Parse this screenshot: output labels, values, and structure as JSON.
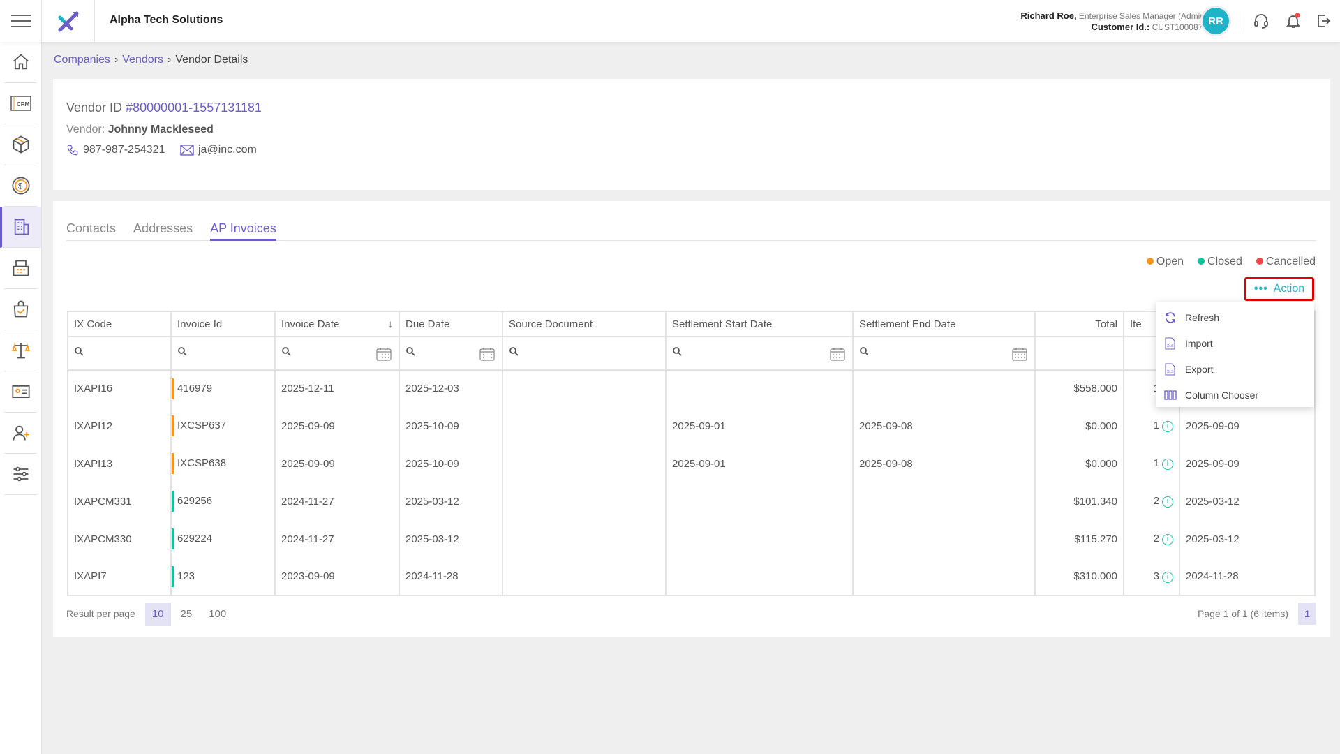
{
  "app": {
    "company": "Alpha Tech Solutions"
  },
  "user": {
    "name": "Richard Roe,",
    "role": "Enterprise Sales Manager (Admin)",
    "customer_label": "Customer Id.:",
    "customer_id": "CUST1000875",
    "initials": "RR"
  },
  "sidebar": {
    "items": [
      {
        "icon": "home-icon"
      },
      {
        "icon": "crm-icon",
        "label": "CRM"
      },
      {
        "icon": "box-icon"
      },
      {
        "icon": "dollar-icon"
      },
      {
        "icon": "building-icon",
        "active": true
      },
      {
        "icon": "register-icon"
      },
      {
        "icon": "shopping-bag-icon"
      },
      {
        "icon": "scales-icon"
      },
      {
        "icon": "id-card-icon"
      },
      {
        "icon": "add-user-icon"
      },
      {
        "icon": "sliders-icon"
      }
    ]
  },
  "breadcrumb": {
    "items": [
      "Companies",
      "Vendors"
    ],
    "current": "Vendor Details"
  },
  "vendor": {
    "id_label": "Vendor ID",
    "id": "#80000001-1557131181",
    "name_label": "Vendor:",
    "name": "Johnny Mackleseed",
    "phone": "987-987-254321",
    "email": "ja@inc.com"
  },
  "tabs": [
    "Contacts",
    "Addresses",
    "AP Invoices"
  ],
  "active_tab": "AP Invoices",
  "legend": [
    {
      "label": "Open",
      "color": "#f7941d"
    },
    {
      "label": "Closed",
      "color": "#13c19a"
    },
    {
      "label": "Cancelled",
      "color": "#f04646"
    }
  ],
  "action": {
    "label": "Action"
  },
  "menu": [
    "Refresh",
    "Import",
    "Export",
    "Column Chooser"
  ],
  "table": {
    "columns": [
      "IX Code",
      "Invoice Id",
      "Invoice Date",
      "Due Date",
      "Source Document",
      "Settlement Start Date",
      "Settlement End Date",
      "Total",
      "Ite",
      ""
    ],
    "rows": [
      {
        "ix": "IXAPI16",
        "inv": "416979",
        "status": "open",
        "date": "2025-12-11",
        "due": "2025-12-03",
        "src": "",
        "ss": "",
        "se": "",
        "total": "$558.000",
        "items": "1",
        "last": ""
      },
      {
        "ix": "IXAPI12",
        "inv": "IXCSP637",
        "status": "open",
        "date": "2025-09-09",
        "due": "2025-10-09",
        "src": "",
        "ss": "2025-09-01",
        "se": "2025-09-08",
        "total": "$0.000",
        "items": "1",
        "last": "2025-09-09"
      },
      {
        "ix": "IXAPI13",
        "inv": "IXCSP638",
        "status": "open",
        "date": "2025-09-09",
        "due": "2025-10-09",
        "src": "",
        "ss": "2025-09-01",
        "se": "2025-09-08",
        "total": "$0.000",
        "items": "1",
        "last": "2025-09-09"
      },
      {
        "ix": "IXAPCM331",
        "inv": "629256",
        "status": "closed",
        "date": "2024-11-27",
        "due": "2025-03-12",
        "src": "",
        "ss": "",
        "se": "",
        "total": "$101.340",
        "items": "2",
        "last": "2025-03-12"
      },
      {
        "ix": "IXAPCM330",
        "inv": "629224",
        "status": "closed",
        "date": "2024-11-27",
        "due": "2025-03-12",
        "src": "",
        "ss": "",
        "se": "",
        "total": "$115.270",
        "items": "2",
        "last": "2025-03-12"
      },
      {
        "ix": "IXAPI7",
        "inv": "123",
        "status": "closed",
        "date": "2023-09-09",
        "due": "2024-11-28",
        "src": "",
        "ss": "",
        "se": "",
        "total": "$310.000",
        "items": "3",
        "last": "2024-11-28"
      }
    ]
  },
  "pagination": {
    "label": "Result per page",
    "sizes": [
      "10",
      "25",
      "100"
    ],
    "selected": "10",
    "info": "Page 1 of 1 (6 items)",
    "page": "1"
  }
}
